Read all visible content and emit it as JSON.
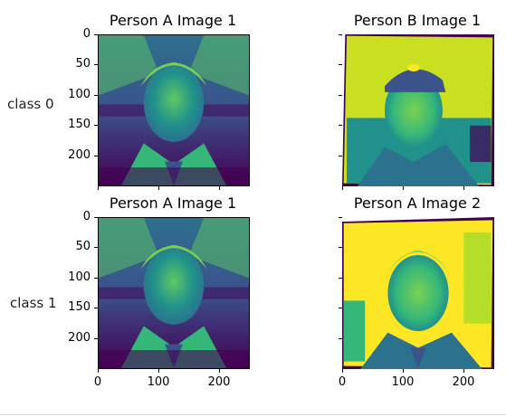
{
  "figure": {
    "panels": [
      {
        "title": "Person A Image 1",
        "variant": "a1"
      },
      {
        "title": "Person B Image 1",
        "variant": "b1"
      },
      {
        "title": "Person A Image 1",
        "variant": "a1"
      },
      {
        "title": "Person A Image 2",
        "variant": "a2"
      }
    ],
    "row_labels": [
      "class 0",
      "class 1"
    ],
    "y_ticks": [
      "0",
      "50",
      "100",
      "150",
      "200"
    ],
    "x_ticks": [
      "0",
      "100",
      "200"
    ],
    "colormap": {
      "dark": "#440154",
      "mid": "#21918c",
      "light": "#fde725",
      "teal": "#3b8f86",
      "green": "#5ec962"
    }
  }
}
